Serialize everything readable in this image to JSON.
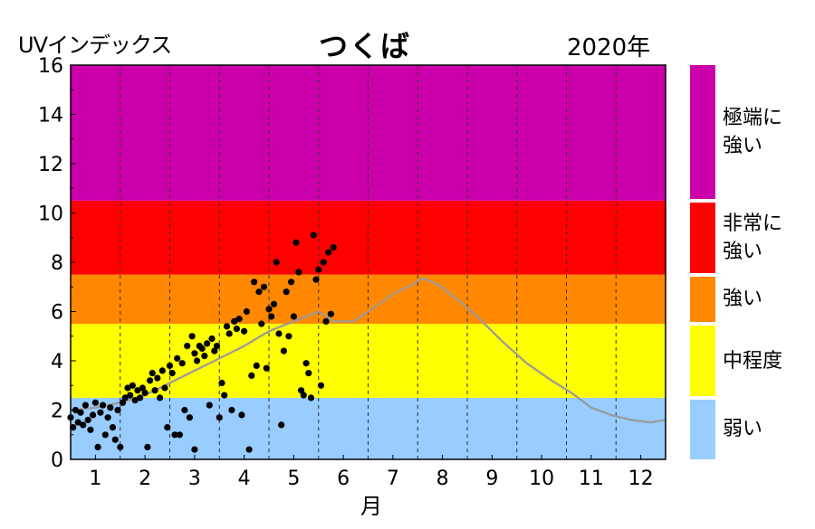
{
  "header": {
    "y_label": "UVインデックス",
    "title": "つくば",
    "year": "2020年"
  },
  "chart_data": {
    "type": "scatter",
    "title": "つくば",
    "ylabel": "UVインデックス",
    "xlabel": "月",
    "xlim": [
      0.5,
      12.5
    ],
    "ylim": [
      0,
      16
    ],
    "grid": "vertical dashed at month boundaries",
    "categories": [
      "1",
      "2",
      "3",
      "4",
      "5",
      "6",
      "7",
      "8",
      "9",
      "10",
      "11",
      "12"
    ],
    "y_ticks": [
      "0",
      "2",
      "4",
      "6",
      "8",
      "10",
      "12",
      "14",
      "16"
    ],
    "bands": [
      {
        "label": "弱い",
        "from": 0,
        "to": 2.5,
        "color": "#99ccff"
      },
      {
        "label": "中程度",
        "from": 2.5,
        "to": 5.5,
        "color": "#ffff00"
      },
      {
        "label": "強い",
        "from": 5.5,
        "to": 7.5,
        "color": "#ff8800"
      },
      {
        "label": "非常に強い",
        "from": 7.5,
        "to": 10.5,
        "color": "#ff0000"
      },
      {
        "label": "極端に強い",
        "from": 10.5,
        "to": 16,
        "color": "#cc00aa"
      }
    ],
    "normal_line": {
      "color": "#999999",
      "points": [
        [
          0.5,
          2.0
        ],
        [
          1.0,
          2.1
        ],
        [
          1.5,
          2.3
        ],
        [
          2.0,
          2.6
        ],
        [
          2.5,
          3.1
        ],
        [
          3.0,
          3.6
        ],
        [
          3.5,
          4.1
        ],
        [
          4.0,
          4.6
        ],
        [
          4.5,
          5.2
        ],
        [
          5.0,
          5.6
        ],
        [
          5.5,
          6.0
        ],
        [
          5.8,
          5.6
        ],
        [
          6.2,
          5.6
        ],
        [
          6.5,
          6.0
        ],
        [
          7.0,
          6.7
        ],
        [
          7.3,
          7.0
        ],
        [
          7.6,
          7.35
        ],
        [
          7.9,
          7.1
        ],
        [
          8.3,
          6.5
        ],
        [
          8.7,
          5.8
        ],
        [
          9.2,
          4.8
        ],
        [
          9.7,
          3.9
        ],
        [
          10.2,
          3.2
        ],
        [
          10.6,
          2.7
        ],
        [
          11.0,
          2.1
        ],
        [
          11.4,
          1.8
        ],
        [
          11.8,
          1.6
        ],
        [
          12.2,
          1.5
        ],
        [
          12.5,
          1.6
        ]
      ]
    },
    "series": [
      {
        "color": "#000000",
        "points": [
          [
            0.5,
            1.7
          ],
          [
            0.55,
            1.3
          ],
          [
            0.6,
            2.0
          ],
          [
            0.65,
            1.5
          ],
          [
            0.7,
            1.9
          ],
          [
            0.75,
            1.4
          ],
          [
            0.8,
            2.2
          ],
          [
            0.85,
            1.6
          ],
          [
            0.9,
            1.2
          ],
          [
            0.95,
            1.8
          ],
          [
            1.0,
            2.3
          ],
          [
            1.05,
            0.5
          ],
          [
            1.1,
            1.9
          ],
          [
            1.15,
            2.2
          ],
          [
            1.2,
            1.0
          ],
          [
            1.25,
            1.7
          ],
          [
            1.3,
            2.1
          ],
          [
            1.35,
            1.3
          ],
          [
            1.4,
            0.8
          ],
          [
            1.45,
            2.0
          ],
          [
            1.5,
            0.5
          ],
          [
            1.55,
            2.3
          ],
          [
            1.6,
            2.5
          ],
          [
            1.65,
            2.9
          ],
          [
            1.7,
            2.6
          ],
          [
            1.75,
            3.0
          ],
          [
            1.8,
            2.4
          ],
          [
            1.85,
            2.8
          ],
          [
            1.9,
            2.5
          ],
          [
            1.95,
            2.9
          ],
          [
            2.0,
            2.7
          ],
          [
            2.05,
            0.5
          ],
          [
            2.1,
            3.2
          ],
          [
            2.15,
            3.5
          ],
          [
            2.2,
            2.8
          ],
          [
            2.25,
            3.3
          ],
          [
            2.3,
            2.5
          ],
          [
            2.35,
            3.6
          ],
          [
            2.4,
            2.9
          ],
          [
            2.45,
            1.3
          ],
          [
            2.5,
            3.8
          ],
          [
            2.55,
            3.5
          ],
          [
            2.6,
            1.0
          ],
          [
            2.65,
            4.1
          ],
          [
            2.7,
            1.0
          ],
          [
            2.75,
            3.9
          ],
          [
            2.8,
            2.0
          ],
          [
            2.85,
            4.6
          ],
          [
            2.9,
            1.7
          ],
          [
            2.95,
            5.0
          ],
          [
            3.0,
            0.4
          ],
          [
            3.0,
            4.3
          ],
          [
            3.05,
            4.0
          ],
          [
            3.1,
            4.6
          ],
          [
            3.15,
            4.5
          ],
          [
            3.2,
            4.2
          ],
          [
            3.25,
            4.7
          ],
          [
            3.3,
            2.2
          ],
          [
            3.35,
            4.9
          ],
          [
            3.4,
            4.4
          ],
          [
            3.45,
            4.6
          ],
          [
            3.5,
            1.7
          ],
          [
            3.55,
            3.1
          ],
          [
            3.6,
            2.6
          ],
          [
            3.65,
            5.4
          ],
          [
            3.7,
            5.1
          ],
          [
            3.75,
            2.0
          ],
          [
            3.8,
            5.6
          ],
          [
            3.85,
            5.3
          ],
          [
            3.9,
            5.7
          ],
          [
            3.95,
            1.8
          ],
          [
            4.0,
            5.2
          ],
          [
            4.05,
            6.0
          ],
          [
            4.1,
            0.4
          ],
          [
            4.15,
            3.4
          ],
          [
            4.2,
            7.2
          ],
          [
            4.25,
            3.8
          ],
          [
            4.3,
            6.8
          ],
          [
            4.35,
            5.5
          ],
          [
            4.4,
            7.0
          ],
          [
            4.45,
            3.7
          ],
          [
            4.5,
            6.1
          ],
          [
            4.55,
            5.8
          ],
          [
            4.6,
            6.3
          ],
          [
            4.65,
            8.0
          ],
          [
            4.7,
            5.1
          ],
          [
            4.75,
            1.4
          ],
          [
            4.8,
            4.4
          ],
          [
            4.85,
            6.8
          ],
          [
            4.9,
            5.0
          ],
          [
            4.95,
            7.2
          ],
          [
            5.0,
            5.8
          ],
          [
            5.05,
            8.8
          ],
          [
            5.1,
            7.6
          ],
          [
            5.15,
            2.8
          ],
          [
            5.2,
            2.6
          ],
          [
            5.25,
            3.9
          ],
          [
            5.3,
            3.5
          ],
          [
            5.35,
            2.5
          ],
          [
            5.4,
            9.1
          ],
          [
            5.45,
            7.3
          ],
          [
            5.5,
            7.7
          ],
          [
            5.55,
            3.0
          ],
          [
            5.6,
            8.0
          ],
          [
            5.65,
            5.6
          ],
          [
            5.7,
            8.4
          ],
          [
            5.75,
            5.9
          ],
          [
            5.8,
            8.6
          ]
        ]
      }
    ]
  },
  "legend": {
    "items": [
      {
        "label": "極端に\n強い",
        "color": "#cc00aa",
        "from": 10.5,
        "to": 16
      },
      {
        "label": "非常に\n強い",
        "color": "#ff0000",
        "from": 7.5,
        "to": 10.5
      },
      {
        "label": "強い",
        "color": "#ff8800",
        "from": 5.5,
        "to": 7.5
      },
      {
        "label": "中程度",
        "color": "#ffff00",
        "from": 2.5,
        "to": 5.5
      },
      {
        "label": "弱い",
        "color": "#99ccff",
        "from": 0,
        "to": 2.5
      }
    ]
  }
}
